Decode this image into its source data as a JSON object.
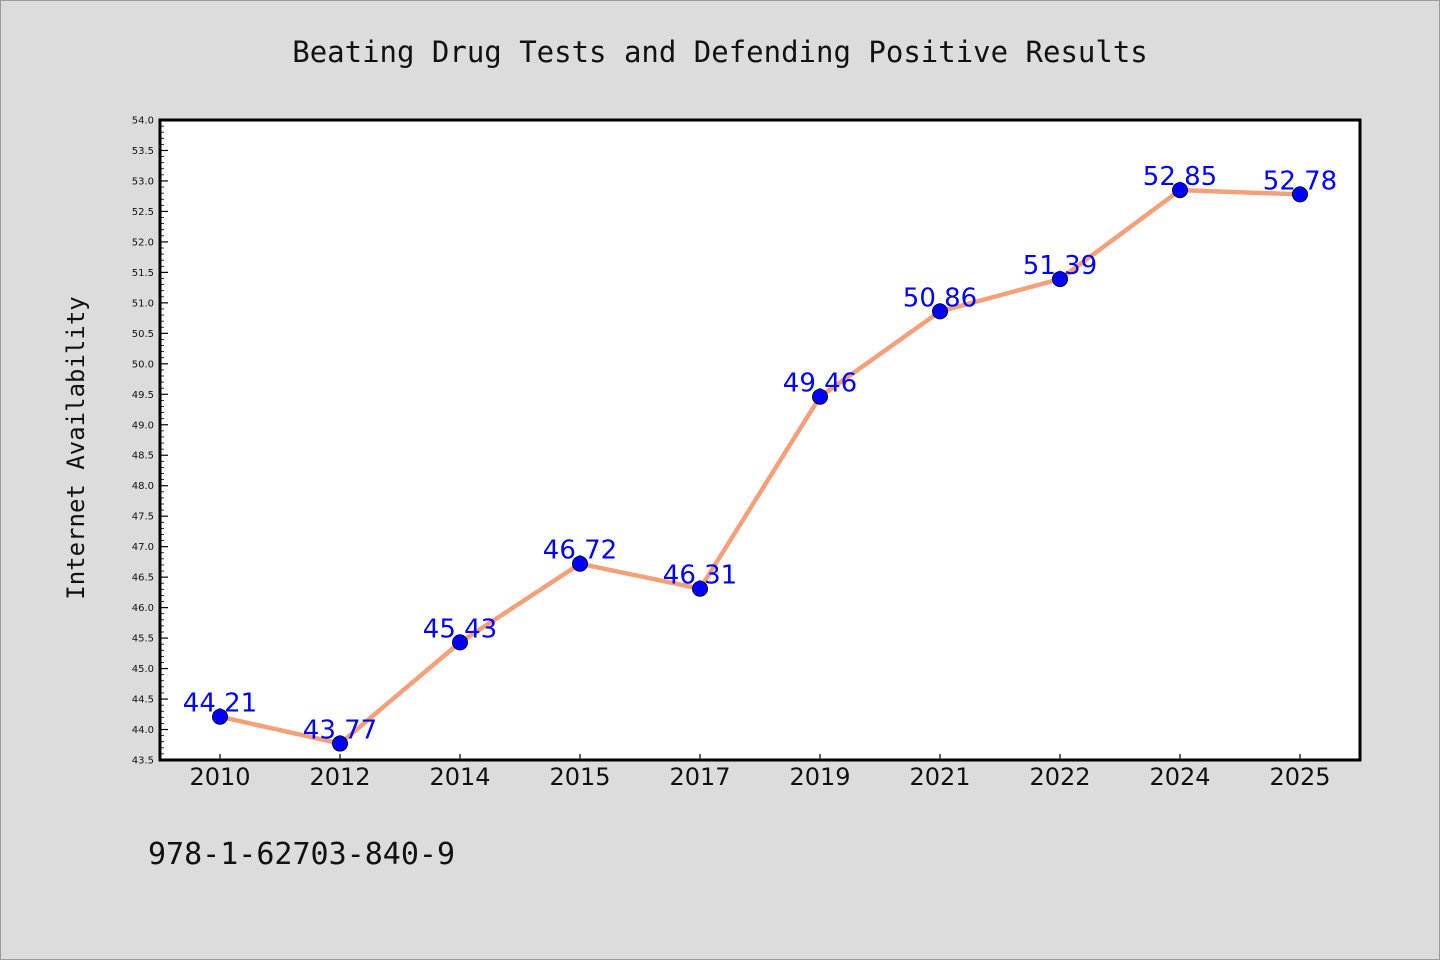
{
  "chart_data": {
    "type": "line",
    "title": "Beating Drug Tests and Defending Positive Results",
    "xlabel": "",
    "ylabel": "Internet Availability",
    "categories": [
      "2010",
      "2012",
      "2014",
      "2015",
      "2017",
      "2019",
      "2021",
      "2022",
      "2024",
      "2025"
    ],
    "series": [
      {
        "values": [
          44.21,
          43.77,
          45.43,
          46.72,
          46.31,
          49.46,
          50.86,
          51.39,
          52.85,
          52.78
        ],
        "line_color": "#f4a07a",
        "marker_color": "#0000ff"
      }
    ],
    "data_labels": [
      "44.21",
      "43.77",
      "45.43",
      "46.72",
      "46.31",
      "49.46",
      "50.86",
      "51.39",
      "52.85",
      "52.78"
    ],
    "ylim": [
      43.5,
      54.0
    ],
    "y_ticks": [
      "43.5",
      "44.0",
      "44.5",
      "45.0",
      "45.5",
      "46.0",
      "46.5",
      "47.0",
      "47.5",
      "48.0",
      "48.5",
      "49.0",
      "49.5",
      "50.0",
      "50.5",
      "51.0",
      "51.5",
      "52.0",
      "52.5",
      "53.0",
      "53.5",
      "54.0"
    ],
    "grid": false,
    "legend": "none"
  },
  "footer": {
    "isbn": "978-1-62703-840-9"
  }
}
